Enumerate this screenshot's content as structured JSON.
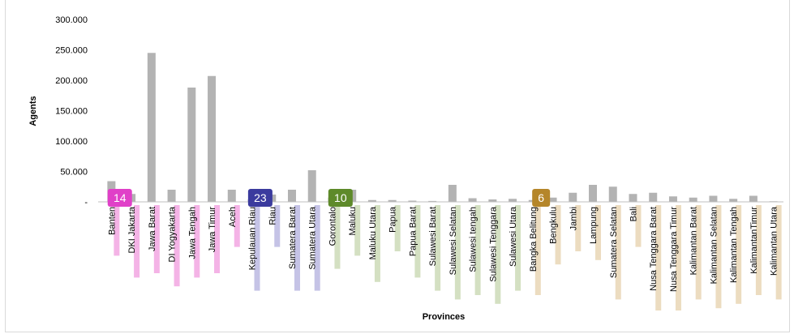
{
  "chart_data": {
    "type": "bar",
    "title": "",
    "xlabel": "Provinces",
    "ylabel": "Agents",
    "ylim": [
      0,
      300000
    ],
    "yticks": [
      0,
      50000,
      100000,
      150000,
      200000,
      250000,
      300000
    ],
    "ytick_labels": [
      "-",
      "50.000",
      "100.000",
      "150.000",
      "200.000",
      "250.000",
      "300.000"
    ],
    "grid": false,
    "bar_color": "#b3b3b3",
    "categories": [
      "Banten",
      "DKI Jakarta",
      "Jawa Barat",
      "DI Yogyakarta",
      "Jawa Tengah",
      "Jawa Timur",
      "Aceh",
      "Kepulauan Riau",
      "Riau",
      "Sumatera Barat",
      "Sumatera Utara",
      "Gorontalo",
      "Maluku",
      "Maluku Utara",
      "Papua",
      "Papua Barat",
      "Sulawesi Barat",
      "Sulawesi Selatan",
      "Sulawesi tengah",
      "Sulawesi Tenggara",
      "Sulawesi Utara",
      "Bangka Belitung",
      "Bengkulu",
      "Jambi",
      "Lampung",
      "Sumatera Selatan",
      "Bali",
      "Nusa Tenggara Barat",
      "Nusa Tenggara Timur",
      "Kalimantan Barat",
      "Kalimantan Selatan",
      "Kalimantan Tengah",
      "KalimantanTimur",
      "Kalimantan Utara"
    ],
    "values": [
      34000,
      13000,
      245000,
      20000,
      188000,
      207000,
      20000,
      4000,
      12000,
      20000,
      52000,
      7000,
      20000,
      3000,
      3000,
      2000,
      1500,
      28000,
      6000,
      4000,
      5000,
      3000,
      7000,
      15000,
      28000,
      25000,
      13000,
      15000,
      9000,
      7000,
      10000,
      5000,
      10000,
      1000
    ],
    "groups": [
      {
        "label": "14",
        "color": "#e040c8",
        "highlight": "#f4b3e6",
        "start": 0,
        "end": 6
      },
      {
        "label": "23",
        "color": "#3b3b9e",
        "highlight": "#c5c3e6",
        "start": 7,
        "end": 10
      },
      {
        "label": "10",
        "color": "#5e8a2a",
        "highlight": "#d4e0c2",
        "start": 11,
        "end": 20
      },
      {
        "label": "6",
        "color": "#b5862a",
        "highlight": "#ecdcc0",
        "start": 21,
        "end": 33
      }
    ]
  }
}
